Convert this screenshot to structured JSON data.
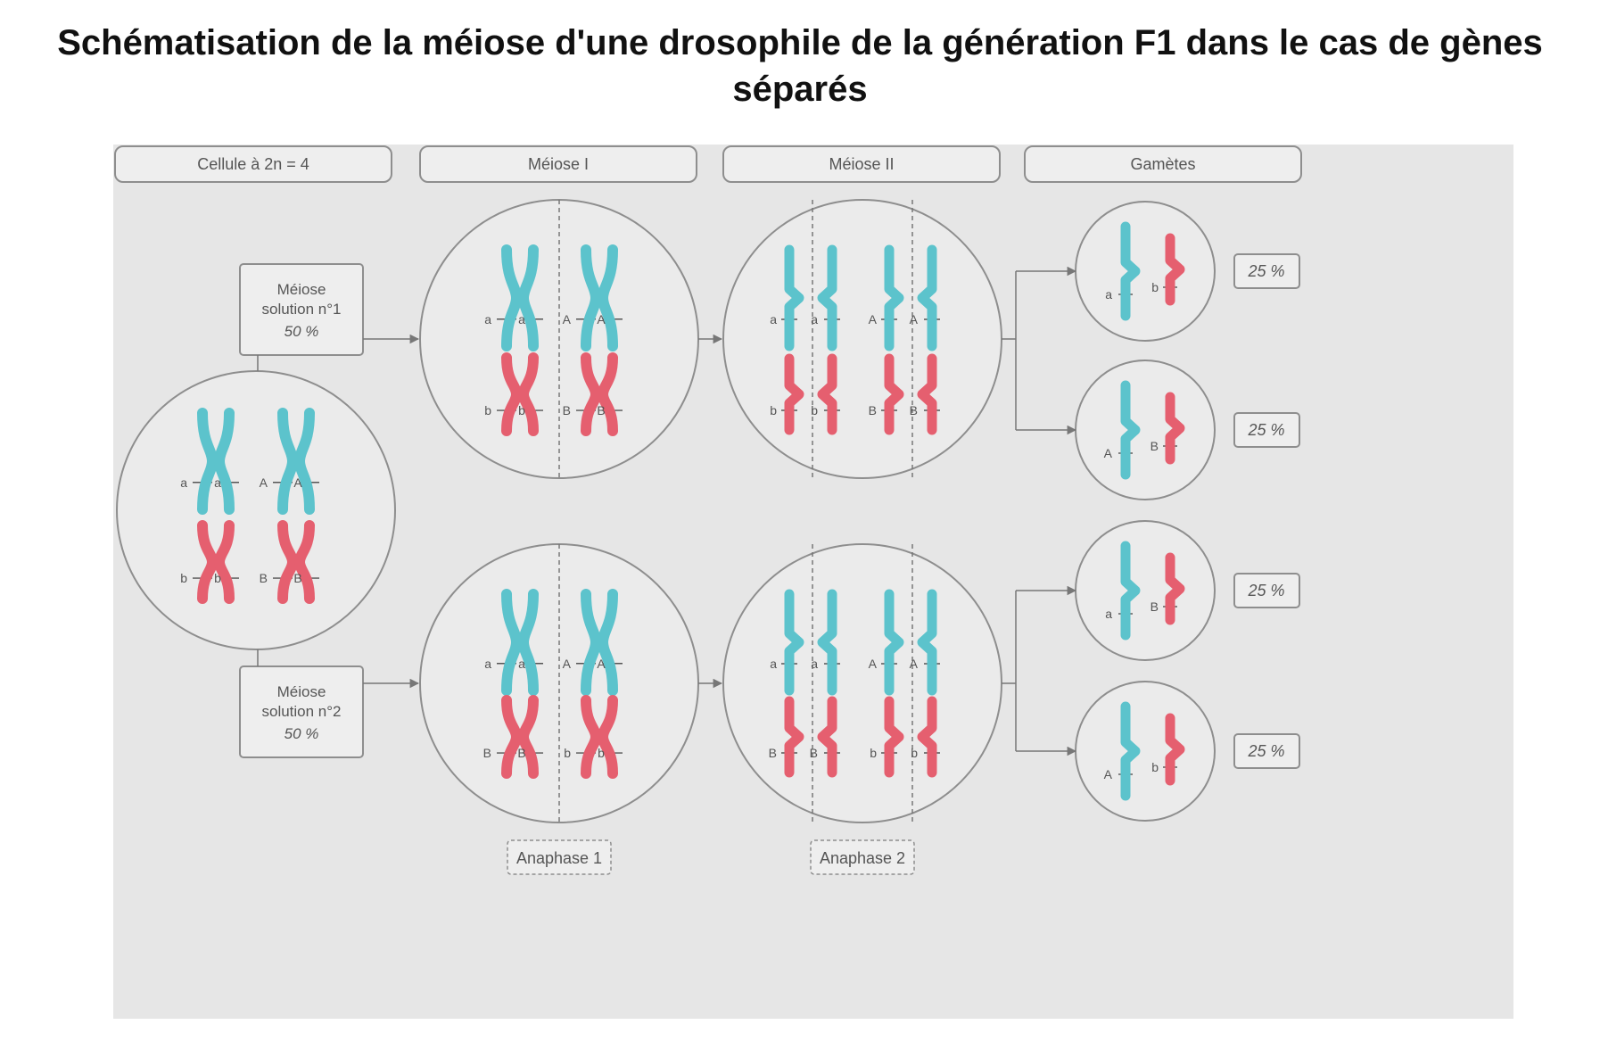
{
  "title_line1": "Schématisation de la méiose d'une drosophile de la génération F1 dans le cas de gènes",
  "title_line2": "séparés",
  "headers": [
    "Cellule à 2n = 4",
    "Méiose I",
    "Méiose II",
    "Gamètes"
  ],
  "solutions": [
    {
      "line1": "Méiose",
      "line2": "solution n°1",
      "line3": "50 %"
    },
    {
      "line1": "Méiose",
      "line2": "solution n°2",
      "line3": "50 %"
    }
  ],
  "phases": [
    "Anaphase 1",
    "Anaphase 2"
  ],
  "alleles": {
    "a": "a",
    "A": "A",
    "b": "b",
    "B": "B"
  },
  "gametes": [
    {
      "blue": "a",
      "red": "b",
      "percent": "25 %"
    },
    {
      "blue": "A",
      "red": "B",
      "percent": "25 %"
    },
    {
      "blue": "a",
      "red": "B",
      "percent": "25 %"
    },
    {
      "blue": "A",
      "red": "b",
      "percent": "25 %"
    }
  ],
  "colors": {
    "blue_chromosome": "#5cc3cc",
    "red_chromosome": "#e55f6f",
    "panel_bg": "#e6e6e6",
    "outline": "#8a8a8a"
  }
}
